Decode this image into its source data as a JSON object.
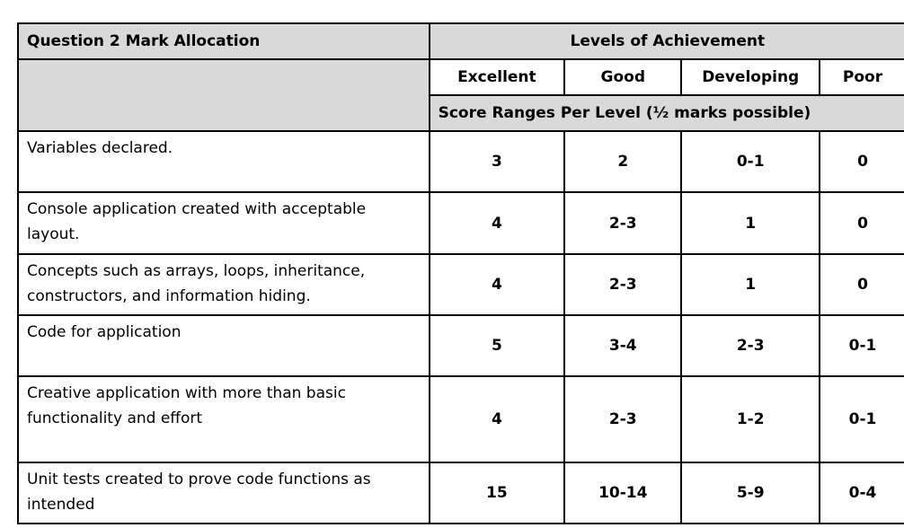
{
  "table": {
    "title": "Question 2 Mark Allocation",
    "levels_header": "Levels of Achievement",
    "levels": [
      "Excellent",
      "Good",
      "Developing",
      "Poor"
    ],
    "score_ranges_label": "Score Ranges Per Level (½ marks possible)",
    "rows": [
      {
        "criterion": "Variables declared.",
        "scores": [
          "3",
          "2",
          "0-1",
          "0"
        ]
      },
      {
        "criterion": "Console application created with acceptable layout.",
        "scores": [
          "4",
          "2-3",
          "1",
          "0"
        ]
      },
      {
        "criterion": "Concepts such as arrays, loops, inheritance, constructors, and information hiding.",
        "scores": [
          "4",
          "2-3",
          "1",
          "0"
        ]
      },
      {
        "criterion": "Code for application",
        "scores": [
          "5",
          "3-4",
          "2-3",
          "0-1"
        ]
      },
      {
        "criterion": "Creative application with more than basic functionality and effort",
        "scores": [
          "4",
          "2-3",
          "1-2",
          "0-1"
        ]
      },
      {
        "criterion": "Unit tests created to prove code functions as intended",
        "scores": [
          "15",
          "10-14",
          "5-9",
          "0-4"
        ]
      }
    ]
  }
}
